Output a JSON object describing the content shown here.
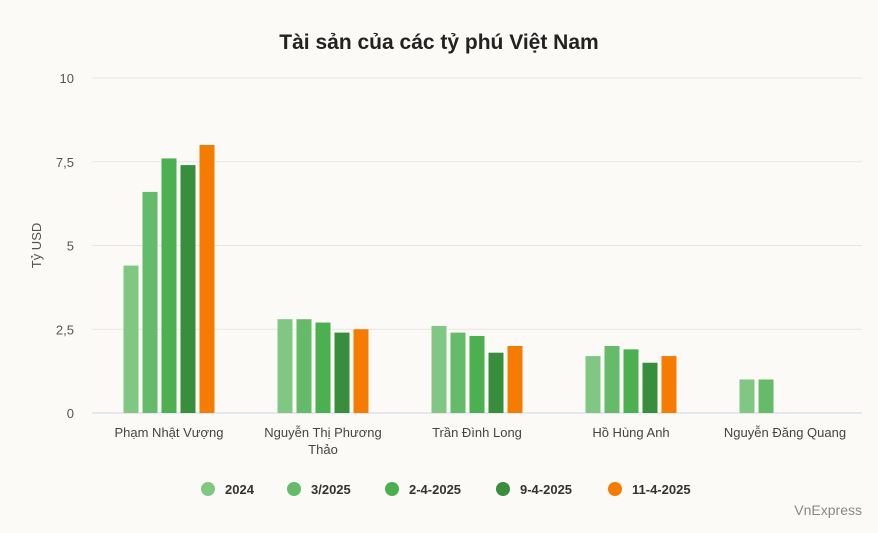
{
  "chart_data": {
    "type": "bar",
    "title": "Tài sản của các tỷ phú Việt Nam",
    "ylabel": "Tỷ USD",
    "xlabel": "",
    "ylim": [
      0,
      10
    ],
    "yticks": [
      "0",
      "2,5",
      "5",
      "7,5",
      "10"
    ],
    "ytick_values": [
      0,
      2.5,
      5,
      7.5,
      10
    ],
    "grid": true,
    "legend": "bottom",
    "categories": [
      [
        "Phạm Nhật Vượng"
      ],
      [
        "Nguyễn Thị Phương",
        "Thảo"
      ],
      [
        "Trần Đình Long"
      ],
      [
        "Hồ Hùng Anh"
      ],
      [
        "Nguyễn Đăng Quang"
      ]
    ],
    "series": [
      {
        "name": "2024",
        "color": "#81c784",
        "values": [
          4.4,
          2.8,
          2.6,
          1.7,
          1.0
        ]
      },
      {
        "name": "3/2025",
        "color": "#66bb6a",
        "values": [
          6.6,
          2.8,
          2.4,
          2.0,
          1.0
        ]
      },
      {
        "name": "2-4-2025",
        "color": "#4caf50",
        "values": [
          7.6,
          2.7,
          2.3,
          1.9,
          null
        ]
      },
      {
        "name": "9-4-2025",
        "color": "#388e3c",
        "values": [
          7.4,
          2.4,
          1.8,
          1.5,
          null
        ]
      },
      {
        "name": "11-4-2025",
        "color": "#f57c00",
        "values": [
          8.0,
          2.5,
          2.0,
          1.7,
          null
        ]
      }
    ]
  },
  "credit": "VnExpress"
}
